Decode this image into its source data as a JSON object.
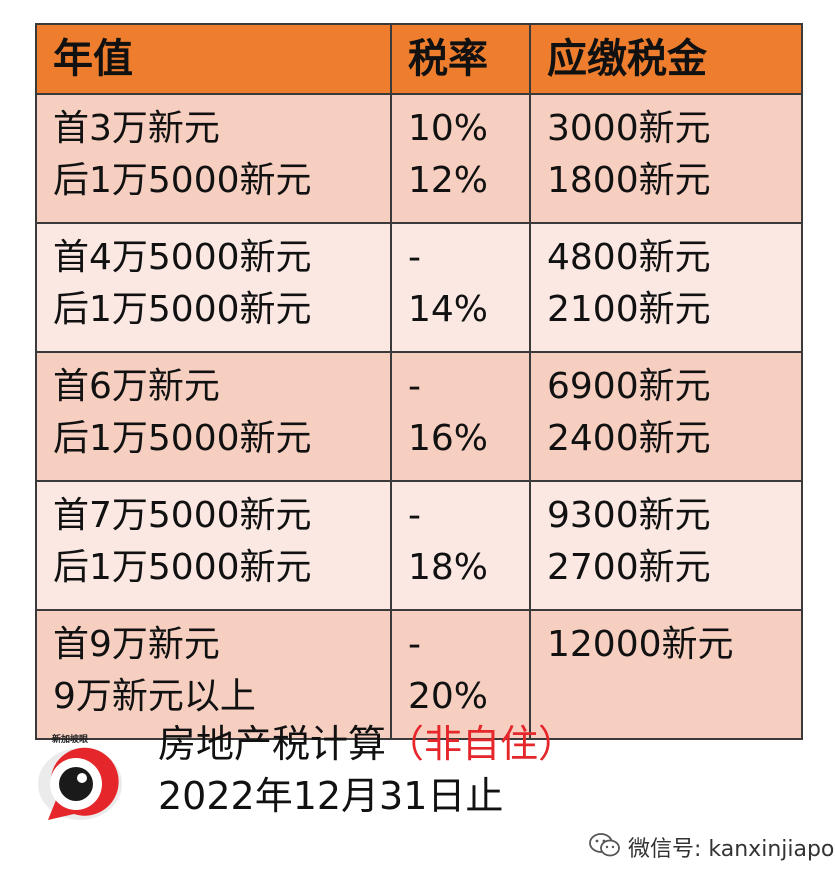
{
  "table": {
    "headers": [
      "年值",
      "税率",
      "应缴税金"
    ],
    "rows": [
      {
        "value": [
          "首3万新元",
          "后1万5000新元"
        ],
        "rate": [
          "10%",
          "12%"
        ],
        "tax": [
          "3000新元",
          "1800新元"
        ]
      },
      {
        "value": [
          "首4万5000新元",
          "后1万5000新元"
        ],
        "rate": [
          "-",
          "14%"
        ],
        "tax": [
          "4800新元",
          "2100新元"
        ]
      },
      {
        "value": [
          "首6万新元",
          "后1万5000新元"
        ],
        "rate": [
          "-",
          "16%"
        ],
        "tax": [
          "6900新元",
          "2400新元"
        ]
      },
      {
        "value": [
          "首7万5000新元",
          "后1万5000新元"
        ],
        "rate": [
          "-",
          "18%"
        ],
        "tax": [
          "9300新元",
          "2700新元"
        ]
      },
      {
        "value": [
          "首9万新元",
          "9万新元以上"
        ],
        "rate": [
          "-",
          "20%"
        ],
        "tax": [
          "12000新元",
          ""
        ]
      }
    ]
  },
  "caption": {
    "title": "房地产税计算",
    "highlight": "（非自住）",
    "date": "2022年12月31日止"
  },
  "logo": {
    "icon": "eye-speech-bubble-logo",
    "text": "新加坡眼"
  },
  "watermark": {
    "icon": "wechat-icon",
    "text": "微信号: kanxinjiapo"
  },
  "colors": {
    "header_bg": "#ee7e2e",
    "row_dark": "#f6cfc1",
    "row_light": "#fbe8e3",
    "highlight": "#e5262b"
  }
}
